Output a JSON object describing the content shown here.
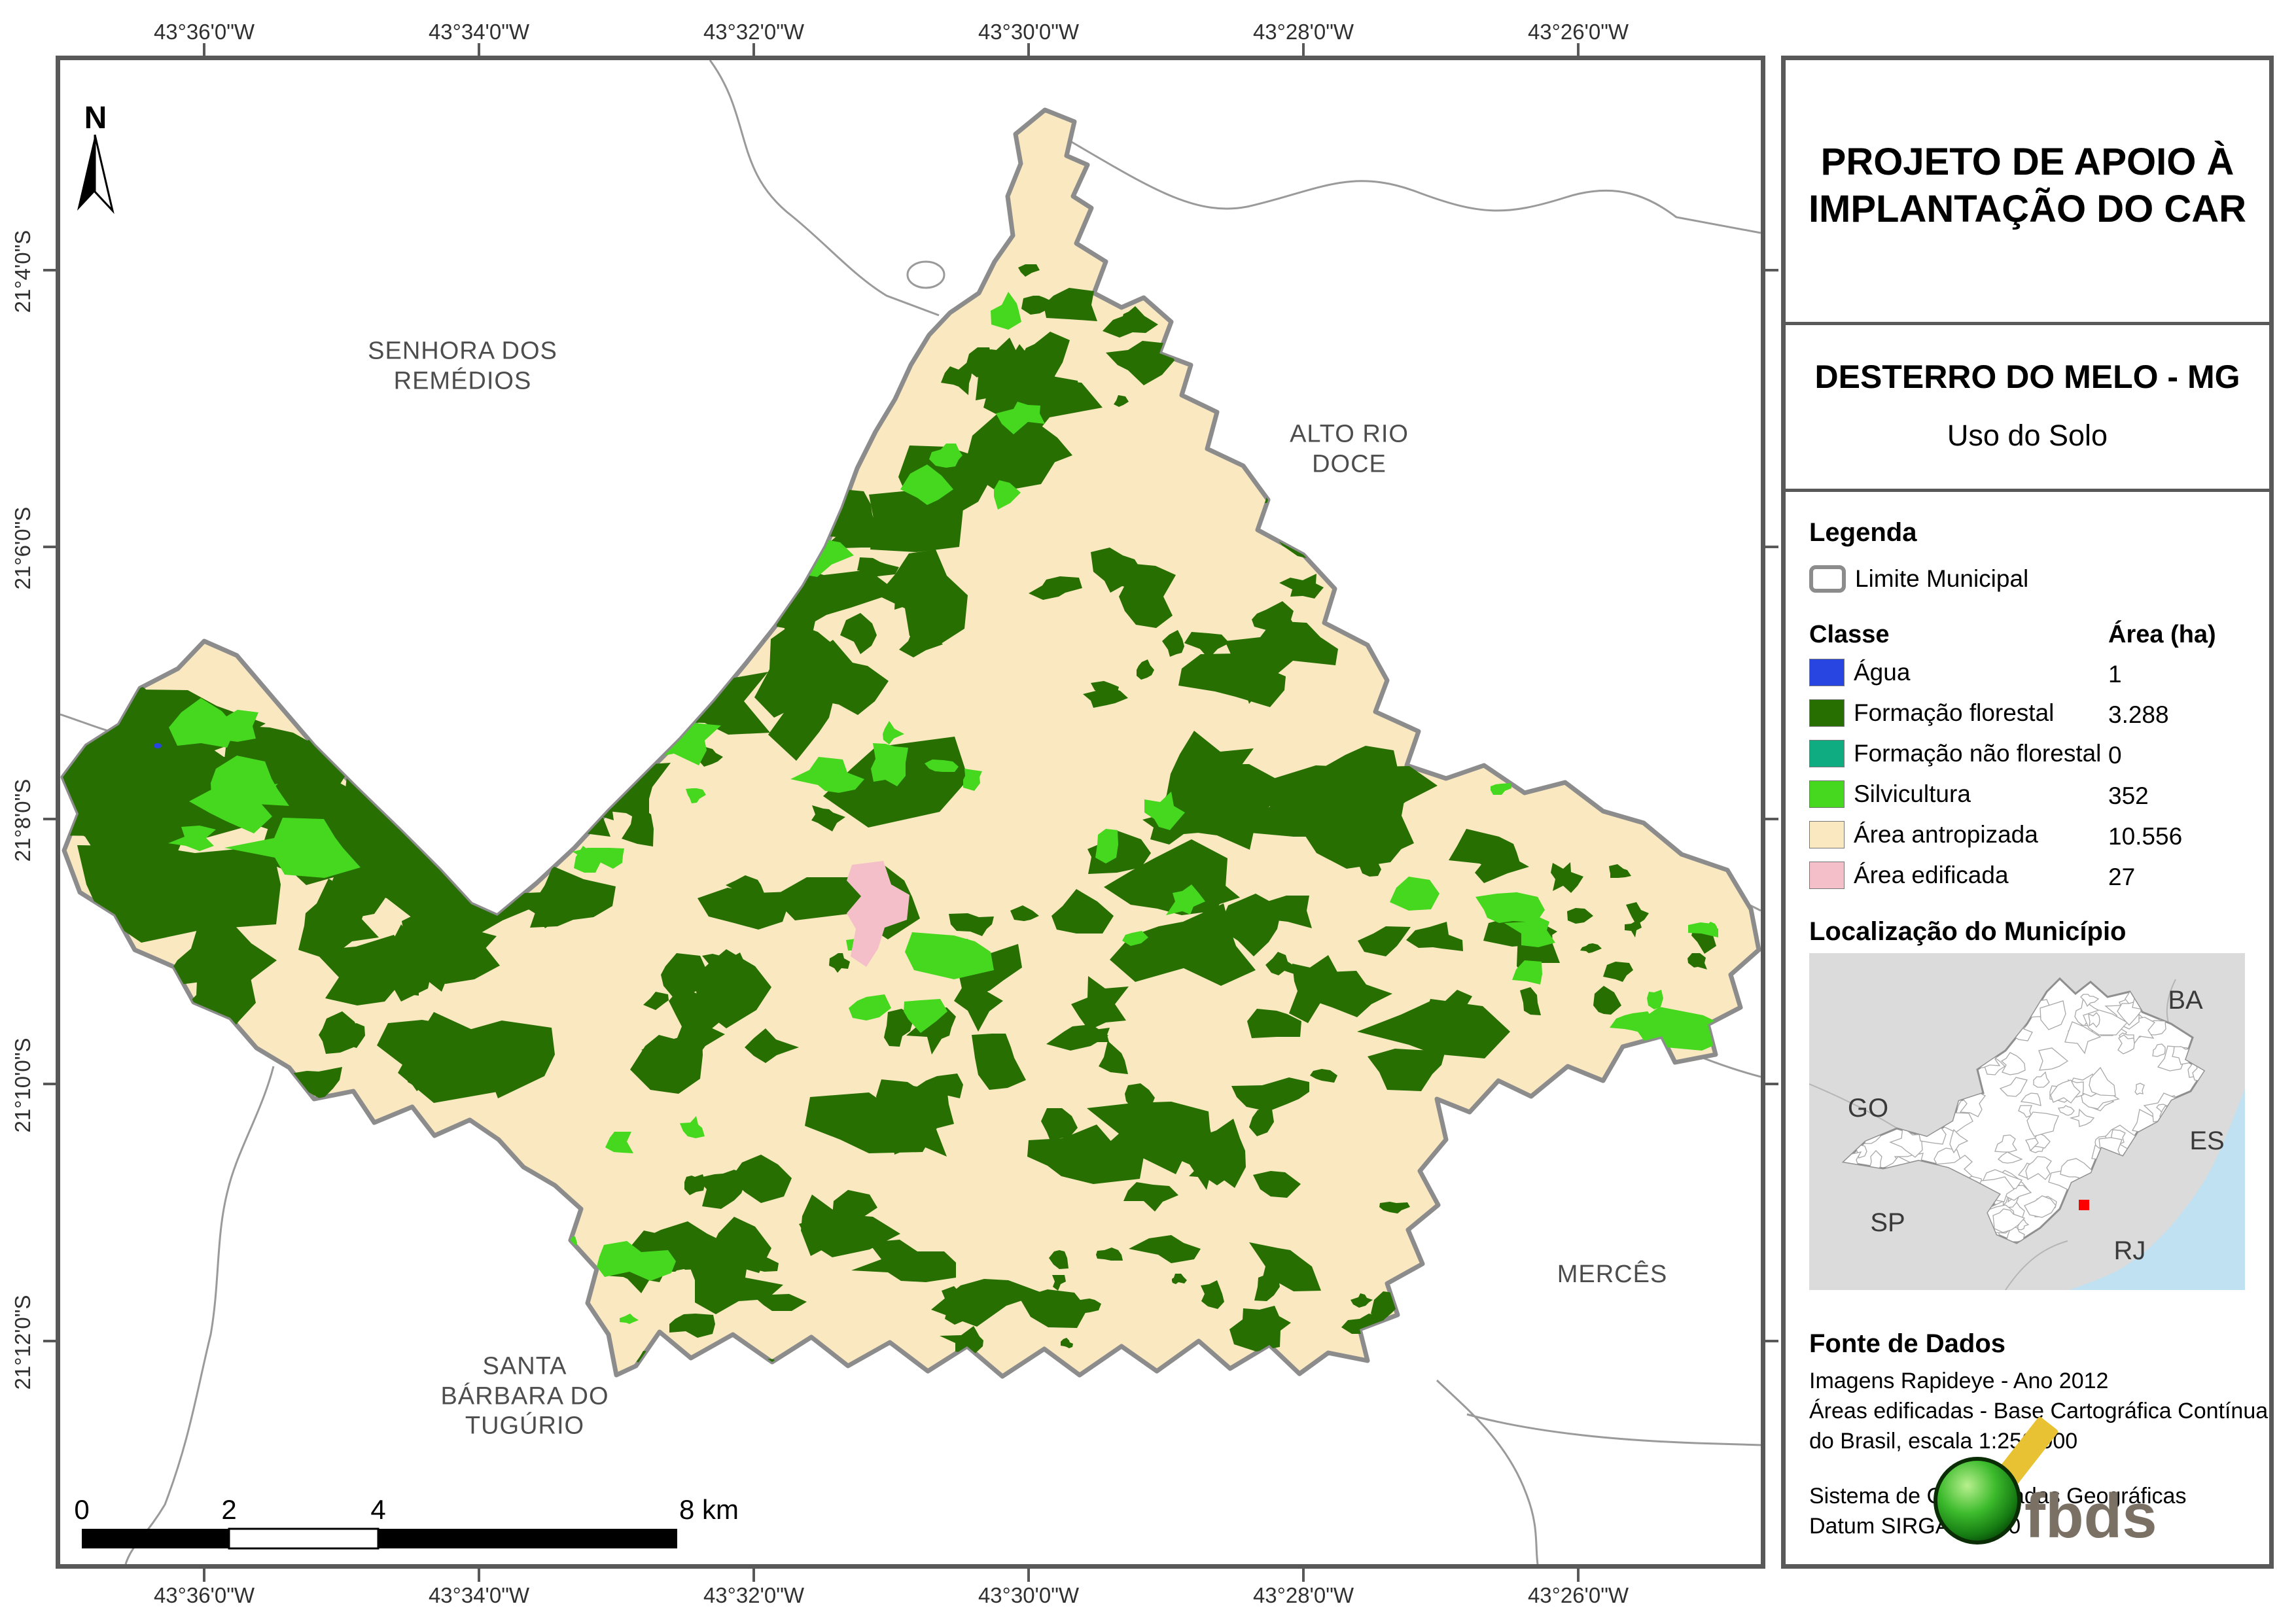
{
  "header": {
    "title_line1": "PROJETO DE APOIO À",
    "title_line2": "IMPLANTAÇÃO DO CAR",
    "municipality": "DESTERRO DO MELO - MG",
    "map_theme": "Uso do Solo"
  },
  "north": {
    "label": "N"
  },
  "axes": {
    "lon": [
      "43°36'0\"W",
      "43°34'0\"W",
      "43°32'0\"W",
      "43°30'0\"W",
      "43°28'0\"W",
      "43°26'0\"W"
    ],
    "lat": [
      "21°4'0\"S",
      "21°6'0\"S",
      "21°8'0\"S",
      "21°10'0\"S",
      "21°12'0\"S"
    ]
  },
  "map_labels": {
    "nw": "SENHORA DOS\nREMÉDIOS",
    "ne": "ALTO RIO\nDOCE",
    "se": "MERCÊS",
    "sw": "SANTA\nBÁRBARA DO\nTUGÚRIO"
  },
  "scalebar": {
    "labels": [
      "0",
      "2",
      "4",
      "8 km"
    ]
  },
  "legend": {
    "heading": "Legenda",
    "boundary_label": "Limite Municipal",
    "class_header": "Classe",
    "area_header": "Área (ha)",
    "rows": [
      {
        "label": "Água",
        "area": "1",
        "color": "#2945E1"
      },
      {
        "label": "Formação florestal",
        "area": "3.288",
        "color": "#266F00"
      },
      {
        "label": "Formação não florestal",
        "area": "0",
        "color": "#0FAC81"
      },
      {
        "label": "Silvicultura",
        "area": "352",
        "color": "#45D81E"
      },
      {
        "label": "Área antropizada",
        "area": "10.556",
        "color": "#FAE8C0"
      },
      {
        "label": "Área edificada",
        "area": "27",
        "color": "#F5BFC9"
      }
    ]
  },
  "location": {
    "heading": "Localização do Município",
    "states": [
      "GO",
      "BA",
      "ES",
      "SP",
      "RJ"
    ]
  },
  "sources": {
    "heading": "Fonte de Dados",
    "lines": [
      "Imagens Rapideye - Ano 2012",
      "Áreas edificadas - Base Cartográfica Contínua",
      "do Brasil, escala 1:250.000",
      "Sistema de Coordenadas Geográficas",
      "Datum SIRGAS 2000"
    ]
  },
  "logo": {
    "text": "fbds"
  },
  "colors": {
    "frame": "#595959",
    "muni_border": "#8C8C8C",
    "neighbor_line": "#9A9A9A",
    "map_label": "#4D4D4D",
    "water": "#2945E1",
    "forest": "#266F00",
    "nonforest": "#0FAC81",
    "silviculture": "#45D81E",
    "anthropized": "#FAE8C0",
    "built": "#F5BFC9",
    "inset_land": "#DBDBDB",
    "inset_sea": "#BFE1F2",
    "inset_border": "#8F8F8F",
    "marker": "#FF0000",
    "logo_text": "#7A7164",
    "logo_yellow": "#E8C233",
    "logo_green": "#2FA32F"
  }
}
